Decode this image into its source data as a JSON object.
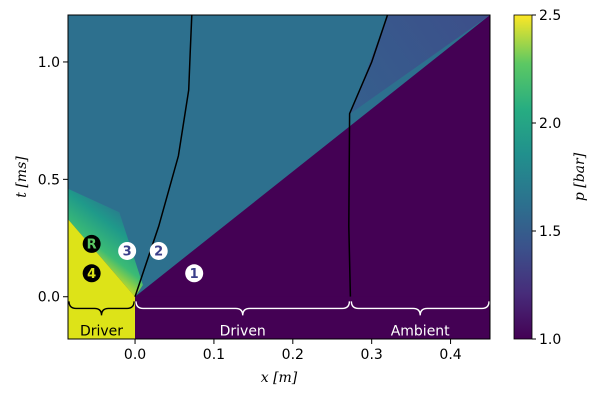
{
  "chart_data": {
    "type": "heatmap",
    "title": "",
    "xlabel": "x [m]",
    "ylabel": "t [ms]",
    "xlim": [
      -0.085,
      0.45
    ],
    "ylim": [
      -0.18,
      1.2
    ],
    "x_ticks": [
      "0.0",
      "0.1",
      "0.2",
      "0.3",
      "0.4"
    ],
    "x_tick_values": [
      0.0,
      0.1,
      0.2,
      0.3,
      0.4
    ],
    "y_ticks": [
      "0.0",
      "0.5",
      "1.0"
    ],
    "y_tick_values": [
      0.0,
      0.5,
      1.0
    ],
    "colorbar": {
      "label": "p [bar]",
      "range": [
        1.0,
        2.5
      ],
      "ticks": [
        "1.0",
        "1.5",
        "2.0",
        "2.5"
      ],
      "tick_values": [
        1.0,
        1.5,
        2.0,
        2.5
      ],
      "colormap": "viridis"
    },
    "regions": {
      "low": {
        "value": 1.0,
        "color": "#440154"
      },
      "mid": {
        "value": 1.55,
        "color": "#2d708e"
      },
      "high": {
        "value": 2.5,
        "color": "#dde318"
      }
    },
    "shock": {
      "x0": 0.0,
      "t0": 0.0,
      "x1": 0.45,
      "t1": 1.2
    },
    "reflected_shock": [
      [
        0.273,
        0.78
      ],
      [
        0.32,
        1.2
      ]
    ],
    "rarefaction_head": {
      "x0": -0.085,
      "t0": 0.33,
      "x1": 0.0,
      "t1": 0.0
    },
    "contact_line": [
      [
        0.0,
        0.0
      ],
      [
        0.03,
        0.3
      ],
      [
        0.055,
        0.6
      ],
      [
        0.068,
        0.88
      ],
      [
        0.07,
        1.05
      ],
      [
        0.072,
        1.2
      ]
    ],
    "interface_line": [
      [
        0.273,
        0.0
      ],
      [
        0.271,
        0.3
      ],
      [
        0.272,
        0.78
      ],
      [
        0.3,
        1.0
      ],
      [
        0.32,
        1.2
      ]
    ],
    "bracket_y": -0.02,
    "brackets": [
      {
        "x0": -0.085,
        "x1": 0.0,
        "label": "Driver",
        "text_color": "#000000"
      },
      {
        "x0": 0.0,
        "x1": 0.273,
        "label": "Driven",
        "text_color": "#ffffff"
      },
      {
        "x0": 0.273,
        "x1": 0.45,
        "label": "Ambient",
        "text_color": "#ffffff"
      }
    ],
    "markers": [
      {
        "label": "1",
        "x": 0.075,
        "t": 0.1,
        "style": "light"
      },
      {
        "label": "2",
        "x": 0.03,
        "t": 0.195,
        "style": "light"
      },
      {
        "label": "3",
        "x": -0.01,
        "t": 0.195,
        "style": "light"
      },
      {
        "label": "4",
        "x": -0.055,
        "t": 0.1,
        "style": "dark"
      },
      {
        "label": "R",
        "x": -0.055,
        "t": 0.225,
        "style": "dark-green"
      }
    ]
  }
}
